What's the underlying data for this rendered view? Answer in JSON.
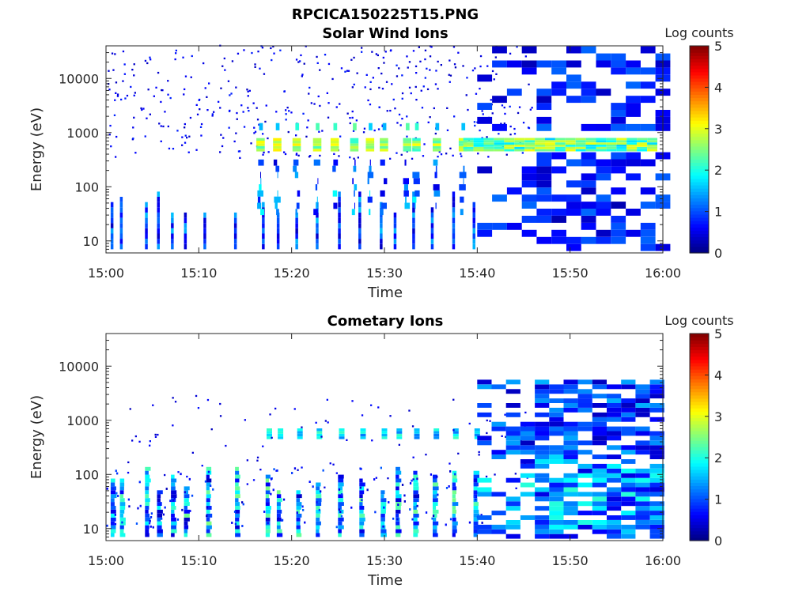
{
  "figure_title": "RPCICA150225T15.PNG",
  "chart_data": [
    {
      "type": "heatmap",
      "title": "Solar Wind Ions",
      "xlabel": "Time",
      "ylabel": "Energy (eV)",
      "y_scale": "log",
      "ylim": [
        6,
        40000
      ],
      "xlim": [
        "15:00",
        "16:00"
      ],
      "x_ticks": [
        "15:00",
        "15:10",
        "15:20",
        "15:30",
        "15:40",
        "15:50",
        "16:00"
      ],
      "y_ticks": [
        "10",
        "100",
        "1000",
        "10000"
      ],
      "colorbar": {
        "label": "Log counts",
        "min": 0,
        "max": 5,
        "ticks": [
          "0",
          "1",
          "2",
          "3",
          "4",
          "5"
        ],
        "colormap": "jet"
      },
      "features": {
        "solar_wind_band_eV": [
          450,
          750
        ],
        "solar_wind_band_peak_log_counts": 3.2,
        "secondary_band_eV": [
          1100,
          1500
        ],
        "secondary_band_peak_log_counts": 2.4,
        "low_energy_spikes_eV": [
          7,
          60
        ],
        "low_energy_spike_minutes": [
          0.5,
          1.5,
          4.2,
          5.5,
          7.0,
          8.4,
          10.5,
          13.8,
          16.8,
          18.4,
          20.4,
          22.6,
          25.0,
          27.2,
          29.5,
          31.0,
          33.0,
          35.0,
          37.3,
          39.5
        ],
        "solar_wind_burst_minutes": [
          16.2,
          18.0,
          20.1,
          22.3,
          24.2,
          26.3,
          28.0,
          29.5,
          32.0,
          33.0,
          35.2,
          38.0
        ],
        "dense_region_start_minute": 46,
        "solar_wind_band_end_minute": 59.3
      }
    },
    {
      "type": "heatmap",
      "title": "Cometary Ions",
      "xlabel": "Time",
      "ylabel": "Energy (eV)",
      "y_scale": "log",
      "ylim": [
        6,
        40000
      ],
      "xlim": [
        "15:00",
        "16:00"
      ],
      "x_ticks": [
        "15:00",
        "15:10",
        "15:20",
        "15:30",
        "15:40",
        "15:50",
        "16:00"
      ],
      "y_ticks": [
        "10",
        "100",
        "1000",
        "10000"
      ],
      "colorbar": {
        "label": "Log counts",
        "min": 0,
        "max": 5,
        "ticks": [
          "0",
          "1",
          "2",
          "3",
          "4",
          "5"
        ],
        "colormap": "jet"
      },
      "features": {
        "cometary_spike_minutes": [
          0.5,
          1.5,
          4.2,
          5.5,
          7.0,
          8.4,
          10.8,
          13.9,
          17.2,
          18.4,
          20.5,
          22.6,
          25.0,
          27.3,
          29.6,
          31.2,
          33.1,
          35.2,
          37.3,
          39.6
        ],
        "cometary_spike_range_eV": [
          7,
          120
        ],
        "cometary_spike_peak_log_counts": 2.2,
        "solar_wind_band_eV": [
          450,
          700
        ],
        "solar_wind_band_start_minute": 16,
        "dense_region_start_minute": 46,
        "dense_region_end_minute": 59.2
      }
    }
  ]
}
